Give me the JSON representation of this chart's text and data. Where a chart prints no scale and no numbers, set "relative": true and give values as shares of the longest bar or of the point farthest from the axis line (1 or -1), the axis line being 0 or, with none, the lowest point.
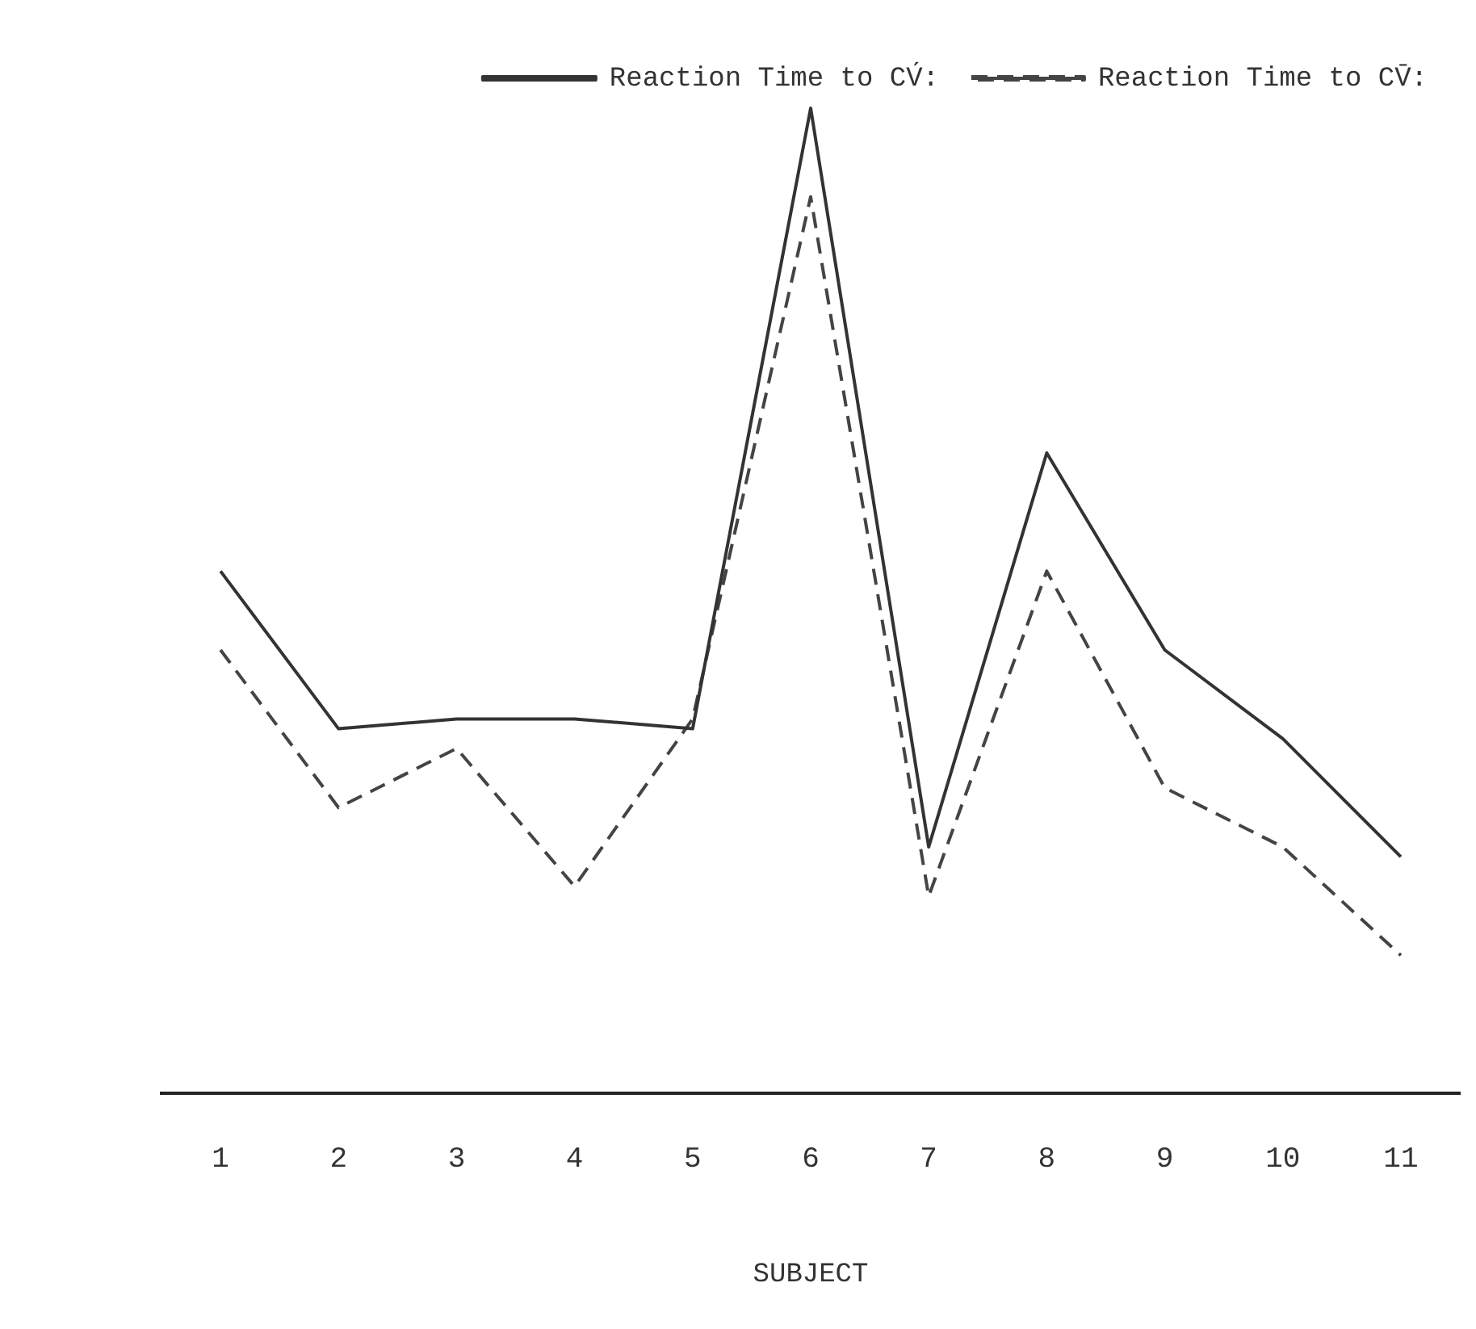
{
  "chart_data": {
    "type": "line",
    "relative": true,
    "xlabel": "SUBJECT",
    "categories": [
      "1",
      "2",
      "3",
      "4",
      "5",
      "6",
      "7",
      "8",
      "9",
      "10",
      "11"
    ],
    "series": [
      {
        "name": "Reaction Time to CV́:",
        "color": "#333333",
        "line_style": "solid",
        "values": [
          0.53,
          0.37,
          0.38,
          0.38,
          0.37,
          1,
          0.25,
          0.65,
          0.45,
          0.36,
          0.24
        ]
      },
      {
        "name": "Reaction Time to CV̄:",
        "color": "#444444",
        "line_style": "dashed",
        "values": [
          0.45,
          0.29,
          0.35,
          0.21,
          0.38,
          0.91,
          0.2,
          0.53,
          0.31,
          0.25,
          0.14
        ]
      }
    ],
    "grid": false,
    "legend": "top right",
    "marker": "none"
  }
}
